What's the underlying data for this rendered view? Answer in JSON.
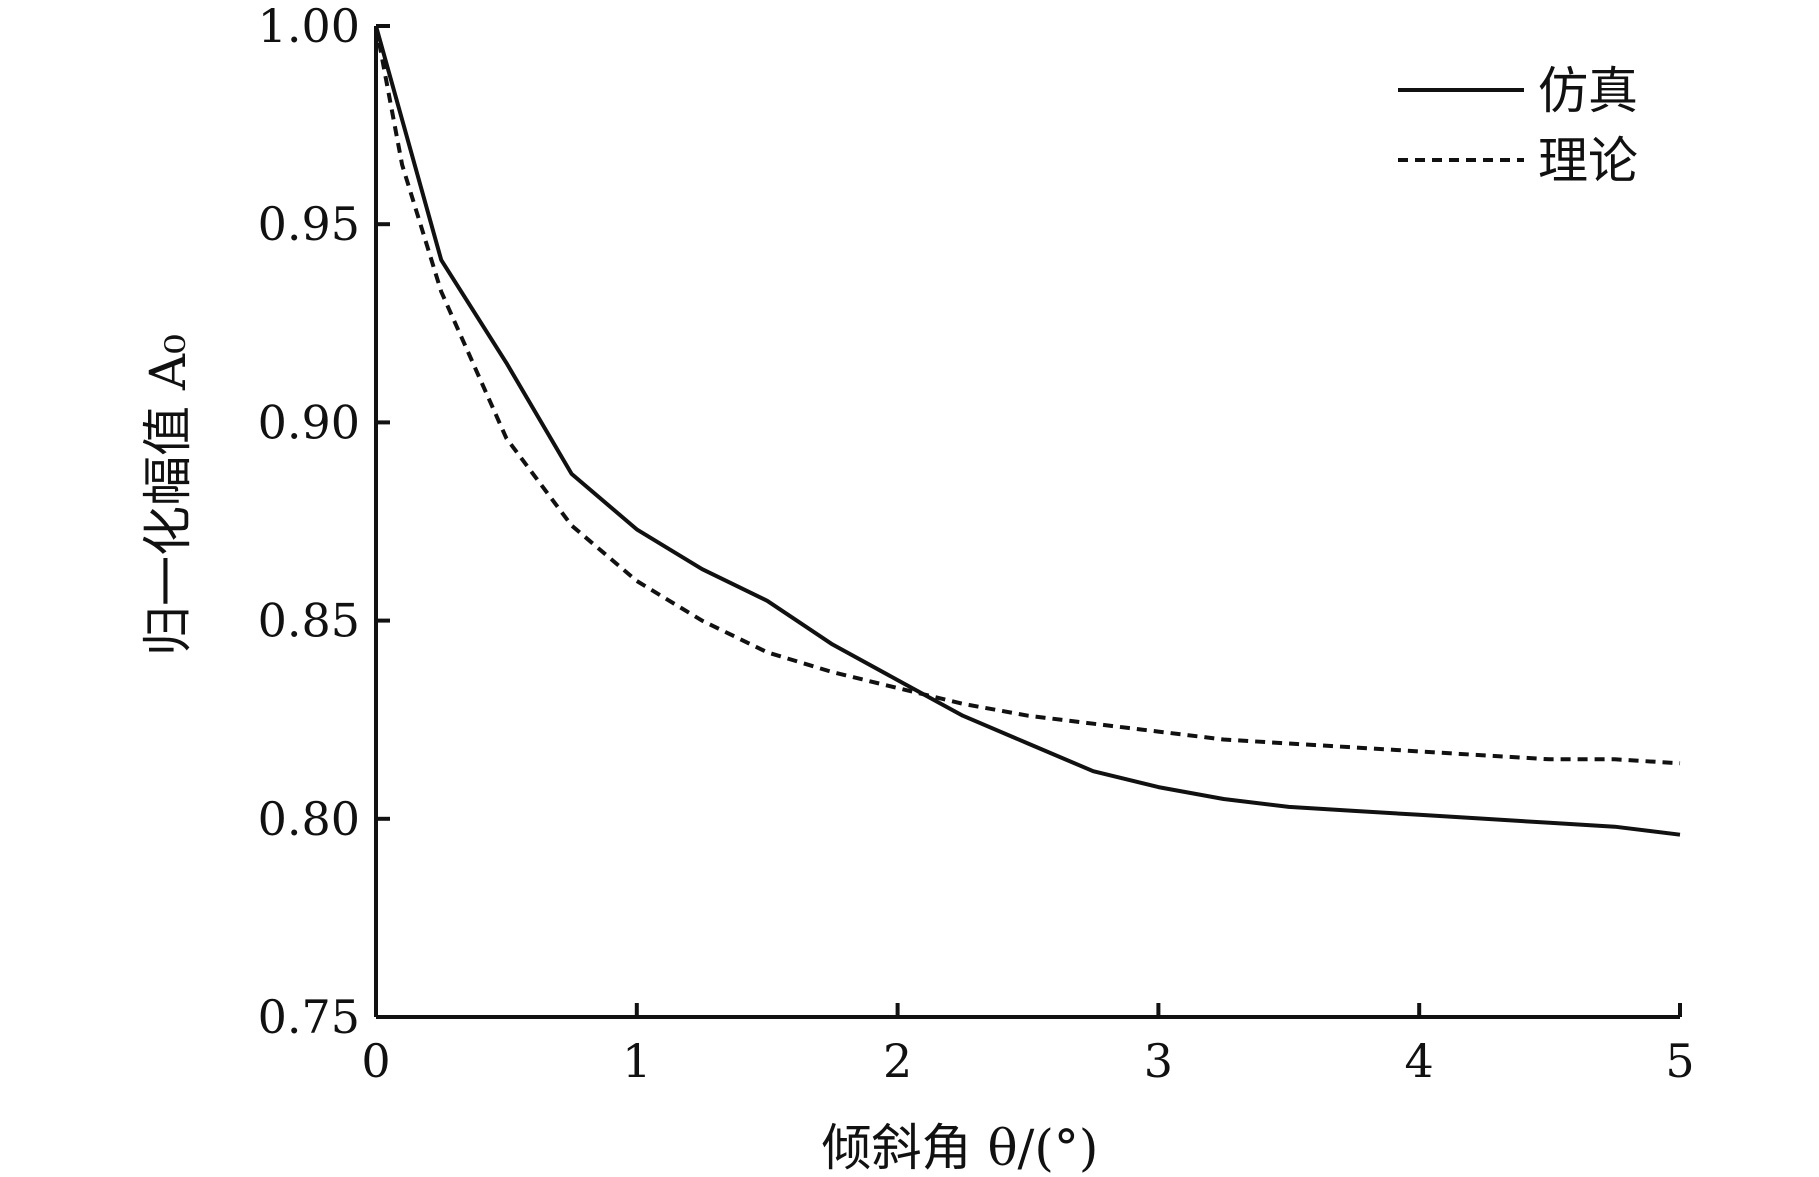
{
  "chart_data": {
    "type": "line",
    "title": "",
    "xlabel": "倾斜角 θ/(°)",
    "ylabel": "归一化幅值 A₀",
    "xlim": [
      0,
      5
    ],
    "ylim": [
      0.75,
      1.0
    ],
    "xticks": [
      "0",
      "1",
      "2",
      "3",
      "4",
      "5"
    ],
    "yticks": [
      "0.75",
      "0.80",
      "0.85",
      "0.90",
      "0.95",
      "1.00"
    ],
    "grid": false,
    "legend": "top-right",
    "series": [
      {
        "name": "仿真",
        "style": "solid",
        "color": "#111111",
        "x": [
          0,
          0.25,
          0.5,
          0.75,
          1.0,
          1.25,
          1.5,
          1.75,
          2.0,
          2.25,
          2.5,
          2.75,
          3.0,
          3.25,
          3.5,
          3.75,
          4.0,
          4.25,
          4.5,
          4.75,
          5.0
        ],
        "y": [
          1.0,
          0.941,
          0.915,
          0.887,
          0.873,
          0.863,
          0.855,
          0.844,
          0.835,
          0.826,
          0.819,
          0.812,
          0.808,
          0.805,
          0.803,
          0.802,
          0.801,
          0.8,
          0.799,
          0.798,
          0.796
        ]
      },
      {
        "name": "理论",
        "style": "dashed",
        "color": "#111111",
        "x": [
          0,
          0.1,
          0.25,
          0.5,
          0.75,
          1.0,
          1.25,
          1.5,
          1.75,
          2.0,
          2.25,
          2.5,
          2.75,
          3.0,
          3.25,
          3.5,
          3.75,
          4.0,
          4.25,
          4.5,
          4.75,
          5.0
        ],
        "y": [
          1.0,
          0.965,
          0.933,
          0.896,
          0.874,
          0.86,
          0.85,
          0.842,
          0.837,
          0.833,
          0.829,
          0.826,
          0.824,
          0.822,
          0.82,
          0.819,
          0.818,
          0.817,
          0.816,
          0.815,
          0.815,
          0.814
        ]
      }
    ]
  }
}
